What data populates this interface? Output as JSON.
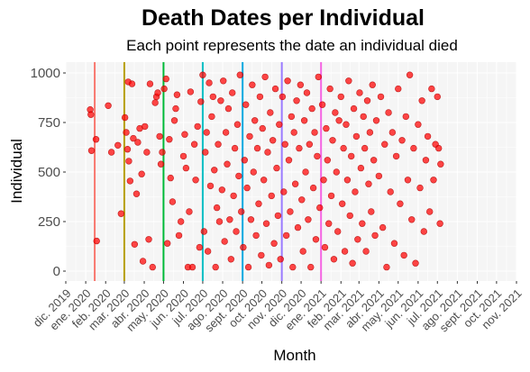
{
  "chart_data": {
    "type": "scatter",
    "title": "Death Dates per Individual",
    "subtitle": "Each point represents the date an individual died",
    "xlabel": "Month",
    "ylabel": "Individual",
    "x_range": [
      "2019-12-01",
      "2021-11-01"
    ],
    "ylim": [
      0,
      1050
    ],
    "y_ticks": [
      0,
      250,
      500,
      750,
      1000
    ],
    "x_ticks": [
      {
        "date": "2019-12-01",
        "label": "dic. 2019"
      },
      {
        "date": "2020-01-01",
        "label": "ene. 2020"
      },
      {
        "date": "2020-02-01",
        "label": "feb. 2020"
      },
      {
        "date": "2020-03-01",
        "label": "mar. 2020"
      },
      {
        "date": "2020-04-01",
        "label": "abr. 2020"
      },
      {
        "date": "2020-05-01",
        "label": "may. 2020"
      },
      {
        "date": "2020-06-01",
        "label": "jun. 2020"
      },
      {
        "date": "2020-07-01",
        "label": "jul. 2020"
      },
      {
        "date": "2020-08-01",
        "label": "ago. 2020"
      },
      {
        "date": "2020-09-01",
        "label": "sept. 2020"
      },
      {
        "date": "2020-10-01",
        "label": "oct. 2020"
      },
      {
        "date": "2020-11-01",
        "label": "nov. 2020"
      },
      {
        "date": "2020-12-01",
        "label": "dic. 2020"
      },
      {
        "date": "2021-01-01",
        "label": "ene. 2021"
      },
      {
        "date": "2021-02-01",
        "label": "feb. 2021"
      },
      {
        "date": "2021-03-01",
        "label": "mar. 2021"
      },
      {
        "date": "2021-04-01",
        "label": "abr. 2021"
      },
      {
        "date": "2021-05-01",
        "label": "may. 2021"
      },
      {
        "date": "2021-06-01",
        "label": "jun. 2021"
      },
      {
        "date": "2021-07-01",
        "label": "jul. 2021"
      },
      {
        "date": "2021-08-01",
        "label": "ago. 2021"
      },
      {
        "date": "2021-09-01",
        "label": "sept. 2021"
      },
      {
        "date": "2021-10-01",
        "label": "oct. 2021"
      },
      {
        "date": "2021-11-01",
        "label": "nov. 2021"
      }
    ],
    "vertical_lines": [
      {
        "date": "2020-01-15",
        "color": "#F8766D"
      },
      {
        "date": "2020-03-01",
        "color": "#B79F00"
      },
      {
        "date": "2020-05-01",
        "color": "#00BA38"
      },
      {
        "date": "2020-07-01",
        "color": "#00BFC4"
      },
      {
        "date": "2020-09-01",
        "color": "#00A9E0"
      },
      {
        "date": "2020-11-01",
        "color": "#9A7BFF"
      },
      {
        "date": "2021-01-01",
        "color": "#F564E3"
      }
    ],
    "point_color": "#FF0000",
    "points": [
      {
        "x": "2020-01-08",
        "y": 815
      },
      {
        "x": "2020-01-09",
        "y": 790
      },
      {
        "x": "2020-01-10",
        "y": 608
      },
      {
        "x": "2020-01-17",
        "y": 665
      },
      {
        "x": "2020-01-18",
        "y": 152
      },
      {
        "x": "2020-02-05",
        "y": 835
      },
      {
        "x": "2020-02-10",
        "y": 600
      },
      {
        "x": "2020-02-20",
        "y": 635
      },
      {
        "x": "2020-02-25",
        "y": 290
      },
      {
        "x": "2020-03-02",
        "y": 775
      },
      {
        "x": "2020-03-04",
        "y": 700
      },
      {
        "x": "2020-03-06",
        "y": 615
      },
      {
        "x": "2020-03-07",
        "y": 955
      },
      {
        "x": "2020-03-08",
        "y": 555
      },
      {
        "x": "2020-03-10",
        "y": 455
      },
      {
        "x": "2020-03-13",
        "y": 945
      },
      {
        "x": "2020-03-15",
        "y": 670
      },
      {
        "x": "2020-03-17",
        "y": 135
      },
      {
        "x": "2020-03-20",
        "y": 390
      },
      {
        "x": "2020-03-22",
        "y": 650
      },
      {
        "x": "2020-03-25",
        "y": 720
      },
      {
        "x": "2020-03-28",
        "y": 490
      },
      {
        "x": "2020-03-30",
        "y": 50
      },
      {
        "x": "2020-04-02",
        "y": 730
      },
      {
        "x": "2020-04-05",
        "y": 600
      },
      {
        "x": "2020-04-08",
        "y": 160
      },
      {
        "x": "2020-04-10",
        "y": 945
      },
      {
        "x": "2020-04-14",
        "y": 20
      },
      {
        "x": "2020-04-18",
        "y": 850
      },
      {
        "x": "2020-04-20",
        "y": 880
      },
      {
        "x": "2020-04-22",
        "y": 900
      },
      {
        "x": "2020-04-25",
        "y": 680
      },
      {
        "x": "2020-04-27",
        "y": 540
      },
      {
        "x": "2020-04-29",
        "y": 600
      },
      {
        "x": "2020-05-02",
        "y": 920
      },
      {
        "x": "2020-05-05",
        "y": 970
      },
      {
        "x": "2020-05-07",
        "y": 140
      },
      {
        "x": "2020-05-10",
        "y": 665
      },
      {
        "x": "2020-05-12",
        "y": 470
      },
      {
        "x": "2020-05-15",
        "y": 350
      },
      {
        "x": "2020-05-18",
        "y": 760
      },
      {
        "x": "2020-05-20",
        "y": 820
      },
      {
        "x": "2020-05-22",
        "y": 890
      },
      {
        "x": "2020-05-25",
        "y": 180
      },
      {
        "x": "2020-05-28",
        "y": 250
      },
      {
        "x": "2020-06-01",
        "y": 580
      },
      {
        "x": "2020-06-03",
        "y": 690
      },
      {
        "x": "2020-06-05",
        "y": 520
      },
      {
        "x": "2020-06-08",
        "y": 20
      },
      {
        "x": "2020-06-10",
        "y": 300
      },
      {
        "x": "2020-06-12",
        "y": 905
      },
      {
        "x": "2020-06-15",
        "y": 20
      },
      {
        "x": "2020-06-18",
        "y": 640
      },
      {
        "x": "2020-06-20",
        "y": 460
      },
      {
        "x": "2020-06-23",
        "y": 730
      },
      {
        "x": "2020-06-26",
        "y": 120
      },
      {
        "x": "2020-06-28",
        "y": 855
      },
      {
        "x": "2020-07-01",
        "y": 990
      },
      {
        "x": "2020-07-03",
        "y": 200
      },
      {
        "x": "2020-07-05",
        "y": 600
      },
      {
        "x": "2020-07-07",
        "y": 700
      },
      {
        "x": "2020-07-09",
        "y": 100
      },
      {
        "x": "2020-07-11",
        "y": 950
      },
      {
        "x": "2020-07-13",
        "y": 430
      },
      {
        "x": "2020-07-15",
        "y": 780
      },
      {
        "x": "2020-07-17",
        "y": 880
      },
      {
        "x": "2020-07-19",
        "y": 510
      },
      {
        "x": "2020-07-21",
        "y": 20
      },
      {
        "x": "2020-07-23",
        "y": 320
      },
      {
        "x": "2020-07-25",
        "y": 640
      },
      {
        "x": "2020-07-27",
        "y": 250
      },
      {
        "x": "2020-07-29",
        "y": 860
      },
      {
        "x": "2020-07-31",
        "y": 410
      },
      {
        "x": "2020-08-02",
        "y": 960
      },
      {
        "x": "2020-08-04",
        "y": 150
      },
      {
        "x": "2020-08-06",
        "y": 700
      },
      {
        "x": "2020-08-08",
        "y": 540
      },
      {
        "x": "2020-08-10",
        "y": 820
      },
      {
        "x": "2020-08-12",
        "y": 260
      },
      {
        "x": "2020-08-14",
        "y": 60
      },
      {
        "x": "2020-08-16",
        "y": 900
      },
      {
        "x": "2020-08-18",
        "y": 380
      },
      {
        "x": "2020-08-20",
        "y": 620
      },
      {
        "x": "2020-08-22",
        "y": 200
      },
      {
        "x": "2020-08-24",
        "y": 740
      },
      {
        "x": "2020-08-26",
        "y": 480
      },
      {
        "x": "2020-08-28",
        "y": 990
      },
      {
        "x": "2020-08-30",
        "y": 300
      },
      {
        "x": "2020-09-02",
        "y": 120
      },
      {
        "x": "2020-09-04",
        "y": 560
      },
      {
        "x": "2020-09-06",
        "y": 840
      },
      {
        "x": "2020-09-08",
        "y": 420
      },
      {
        "x": "2020-09-10",
        "y": 20
      },
      {
        "x": "2020-09-12",
        "y": 680
      },
      {
        "x": "2020-09-14",
        "y": 260
      },
      {
        "x": "2020-09-16",
        "y": 940
      },
      {
        "x": "2020-09-18",
        "y": 500
      },
      {
        "x": "2020-09-20",
        "y": 760
      },
      {
        "x": "2020-09-22",
        "y": 180
      },
      {
        "x": "2020-09-24",
        "y": 620
      },
      {
        "x": "2020-09-26",
        "y": 340
      },
      {
        "x": "2020-09-28",
        "y": 880
      },
      {
        "x": "2020-09-30",
        "y": 80
      },
      {
        "x": "2020-10-02",
        "y": 720
      },
      {
        "x": "2020-10-04",
        "y": 460
      },
      {
        "x": "2020-10-06",
        "y": 980
      },
      {
        "x": "2020-10-08",
        "y": 240
      },
      {
        "x": "2020-10-10",
        "y": 600
      },
      {
        "x": "2020-10-12",
        "y": 30
      },
      {
        "x": "2020-10-14",
        "y": 800
      },
      {
        "x": "2020-10-16",
        "y": 380
      },
      {
        "x": "2020-10-18",
        "y": 660
      },
      {
        "x": "2020-10-20",
        "y": 140
      },
      {
        "x": "2020-10-22",
        "y": 920
      },
      {
        "x": "2020-10-24",
        "y": 520
      },
      {
        "x": "2020-10-26",
        "y": 280
      },
      {
        "x": "2020-10-28",
        "y": 740
      },
      {
        "x": "2020-10-30",
        "y": 60
      },
      {
        "x": "2020-11-02",
        "y": 880
      },
      {
        "x": "2020-11-04",
        "y": 400
      },
      {
        "x": "2020-11-06",
        "y": 640
      },
      {
        "x": "2020-11-08",
        "y": 180
      },
      {
        "x": "2020-11-10",
        "y": 960
      },
      {
        "x": "2020-11-12",
        "y": 560
      },
      {
        "x": "2020-11-14",
        "y": 300
      },
      {
        "x": "2020-11-16",
        "y": 780
      },
      {
        "x": "2020-11-18",
        "y": 20
      },
      {
        "x": "2020-11-20",
        "y": 700
      },
      {
        "x": "2020-11-22",
        "y": 440
      },
      {
        "x": "2020-11-24",
        "y": 860
      },
      {
        "x": "2020-11-26",
        "y": 220
      },
      {
        "x": "2020-11-28",
        "y": 620
      },
      {
        "x": "2020-11-30",
        "y": 940
      },
      {
        "x": "2020-12-02",
        "y": 360
      },
      {
        "x": "2020-12-04",
        "y": 100
      },
      {
        "x": "2020-12-06",
        "y": 760
      },
      {
        "x": "2020-12-08",
        "y": 500
      },
      {
        "x": "2020-12-10",
        "y": 900
      },
      {
        "x": "2020-12-12",
        "y": 260
      },
      {
        "x": "2020-12-14",
        "y": 640
      },
      {
        "x": "2020-12-16",
        "y": 20
      },
      {
        "x": "2020-12-18",
        "y": 820
      },
      {
        "x": "2020-12-20",
        "y": 420
      },
      {
        "x": "2020-12-22",
        "y": 700
      },
      {
        "x": "2020-12-24",
        "y": 160
      },
      {
        "x": "2020-12-26",
        "y": 580
      },
      {
        "x": "2020-12-28",
        "y": 980
      },
      {
        "x": "2020-12-30",
        "y": 320
      },
      {
        "x": "2021-01-03",
        "y": 840
      },
      {
        "x": "2021-01-05",
        "y": 460
      },
      {
        "x": "2021-01-07",
        "y": 120
      },
      {
        "x": "2021-01-09",
        "y": 720
      },
      {
        "x": "2021-01-11",
        "y": 560
      },
      {
        "x": "2021-01-13",
        "y": 240
      },
      {
        "x": "2021-01-15",
        "y": 920
      },
      {
        "x": "2021-01-17",
        "y": 380
      },
      {
        "x": "2021-01-19",
        "y": 660
      },
      {
        "x": "2021-01-21",
        "y": 60
      },
      {
        "x": "2021-01-23",
        "y": 800
      },
      {
        "x": "2021-01-25",
        "y": 500
      },
      {
        "x": "2021-01-27",
        "y": 200
      },
      {
        "x": "2021-01-29",
        "y": 760
      },
      {
        "x": "2021-02-01",
        "y": 880
      },
      {
        "x": "2021-02-03",
        "y": 340
      },
      {
        "x": "2021-02-05",
        "y": 620
      },
      {
        "x": "2021-02-07",
        "y": 100
      },
      {
        "x": "2021-02-09",
        "y": 740
      },
      {
        "x": "2021-02-11",
        "y": 460
      },
      {
        "x": "2021-02-13",
        "y": 960
      },
      {
        "x": "2021-02-15",
        "y": 280
      },
      {
        "x": "2021-02-17",
        "y": 580
      },
      {
        "x": "2021-02-19",
        "y": 40
      },
      {
        "x": "2021-02-21",
        "y": 820
      },
      {
        "x": "2021-02-23",
        "y": 400
      },
      {
        "x": "2021-02-25",
        "y": 680
      },
      {
        "x": "2021-02-27",
        "y": 160
      },
      {
        "x": "2021-03-02",
        "y": 900
      },
      {
        "x": "2021-03-04",
        "y": 520
      },
      {
        "x": "2021-03-06",
        "y": 240
      },
      {
        "x": "2021-03-08",
        "y": 780
      },
      {
        "x": "2021-03-10",
        "y": 620
      },
      {
        "x": "2021-03-12",
        "y": 100
      },
      {
        "x": "2021-03-14",
        "y": 860
      },
      {
        "x": "2021-03-16",
        "y": 440
      },
      {
        "x": "2021-03-18",
        "y": 700
      },
      {
        "x": "2021-03-20",
        "y": 300
      },
      {
        "x": "2021-03-22",
        "y": 940
      },
      {
        "x": "2021-03-24",
        "y": 560
      },
      {
        "x": "2021-03-26",
        "y": 180
      },
      {
        "x": "2021-03-28",
        "y": 760
      },
      {
        "x": "2021-04-01",
        "y": 480
      },
      {
        "x": "2021-04-04",
        "y": 880
      },
      {
        "x": "2021-04-07",
        "y": 220
      },
      {
        "x": "2021-04-10",
        "y": 640
      },
      {
        "x": "2021-04-13",
        "y": 20
      },
      {
        "x": "2021-04-16",
        "y": 800
      },
      {
        "x": "2021-04-19",
        "y": 400
      },
      {
        "x": "2021-04-22",
        "y": 700
      },
      {
        "x": "2021-04-25",
        "y": 140
      },
      {
        "x": "2021-04-28",
        "y": 580
      },
      {
        "x": "2021-05-01",
        "y": 920
      },
      {
        "x": "2021-05-04",
        "y": 340
      },
      {
        "x": "2021-05-07",
        "y": 660
      },
      {
        "x": "2021-05-10",
        "y": 80
      },
      {
        "x": "2021-05-13",
        "y": 780
      },
      {
        "x": "2021-05-16",
        "y": 460
      },
      {
        "x": "2021-05-19",
        "y": 990
      },
      {
        "x": "2021-05-22",
        "y": 260
      },
      {
        "x": "2021-05-25",
        "y": 620
      },
      {
        "x": "2021-05-28",
        "y": 40
      },
      {
        "x": "2021-06-01",
        "y": 740
      },
      {
        "x": "2021-06-04",
        "y": 420
      },
      {
        "x": "2021-06-07",
        "y": 860
      },
      {
        "x": "2021-06-10",
        "y": 200
      },
      {
        "x": "2021-06-13",
        "y": 560
      },
      {
        "x": "2021-06-16",
        "y": 680
      },
      {
        "x": "2021-06-19",
        "y": 300
      },
      {
        "x": "2021-06-22",
        "y": 920
      },
      {
        "x": "2021-06-25",
        "y": 460
      },
      {
        "x": "2021-06-28",
        "y": 640
      },
      {
        "x": "2021-07-01",
        "y": 880
      },
      {
        "x": "2021-07-03",
        "y": 620
      },
      {
        "x": "2021-07-05",
        "y": 240
      },
      {
        "x": "2021-07-06",
        "y": 540
      }
    ]
  }
}
